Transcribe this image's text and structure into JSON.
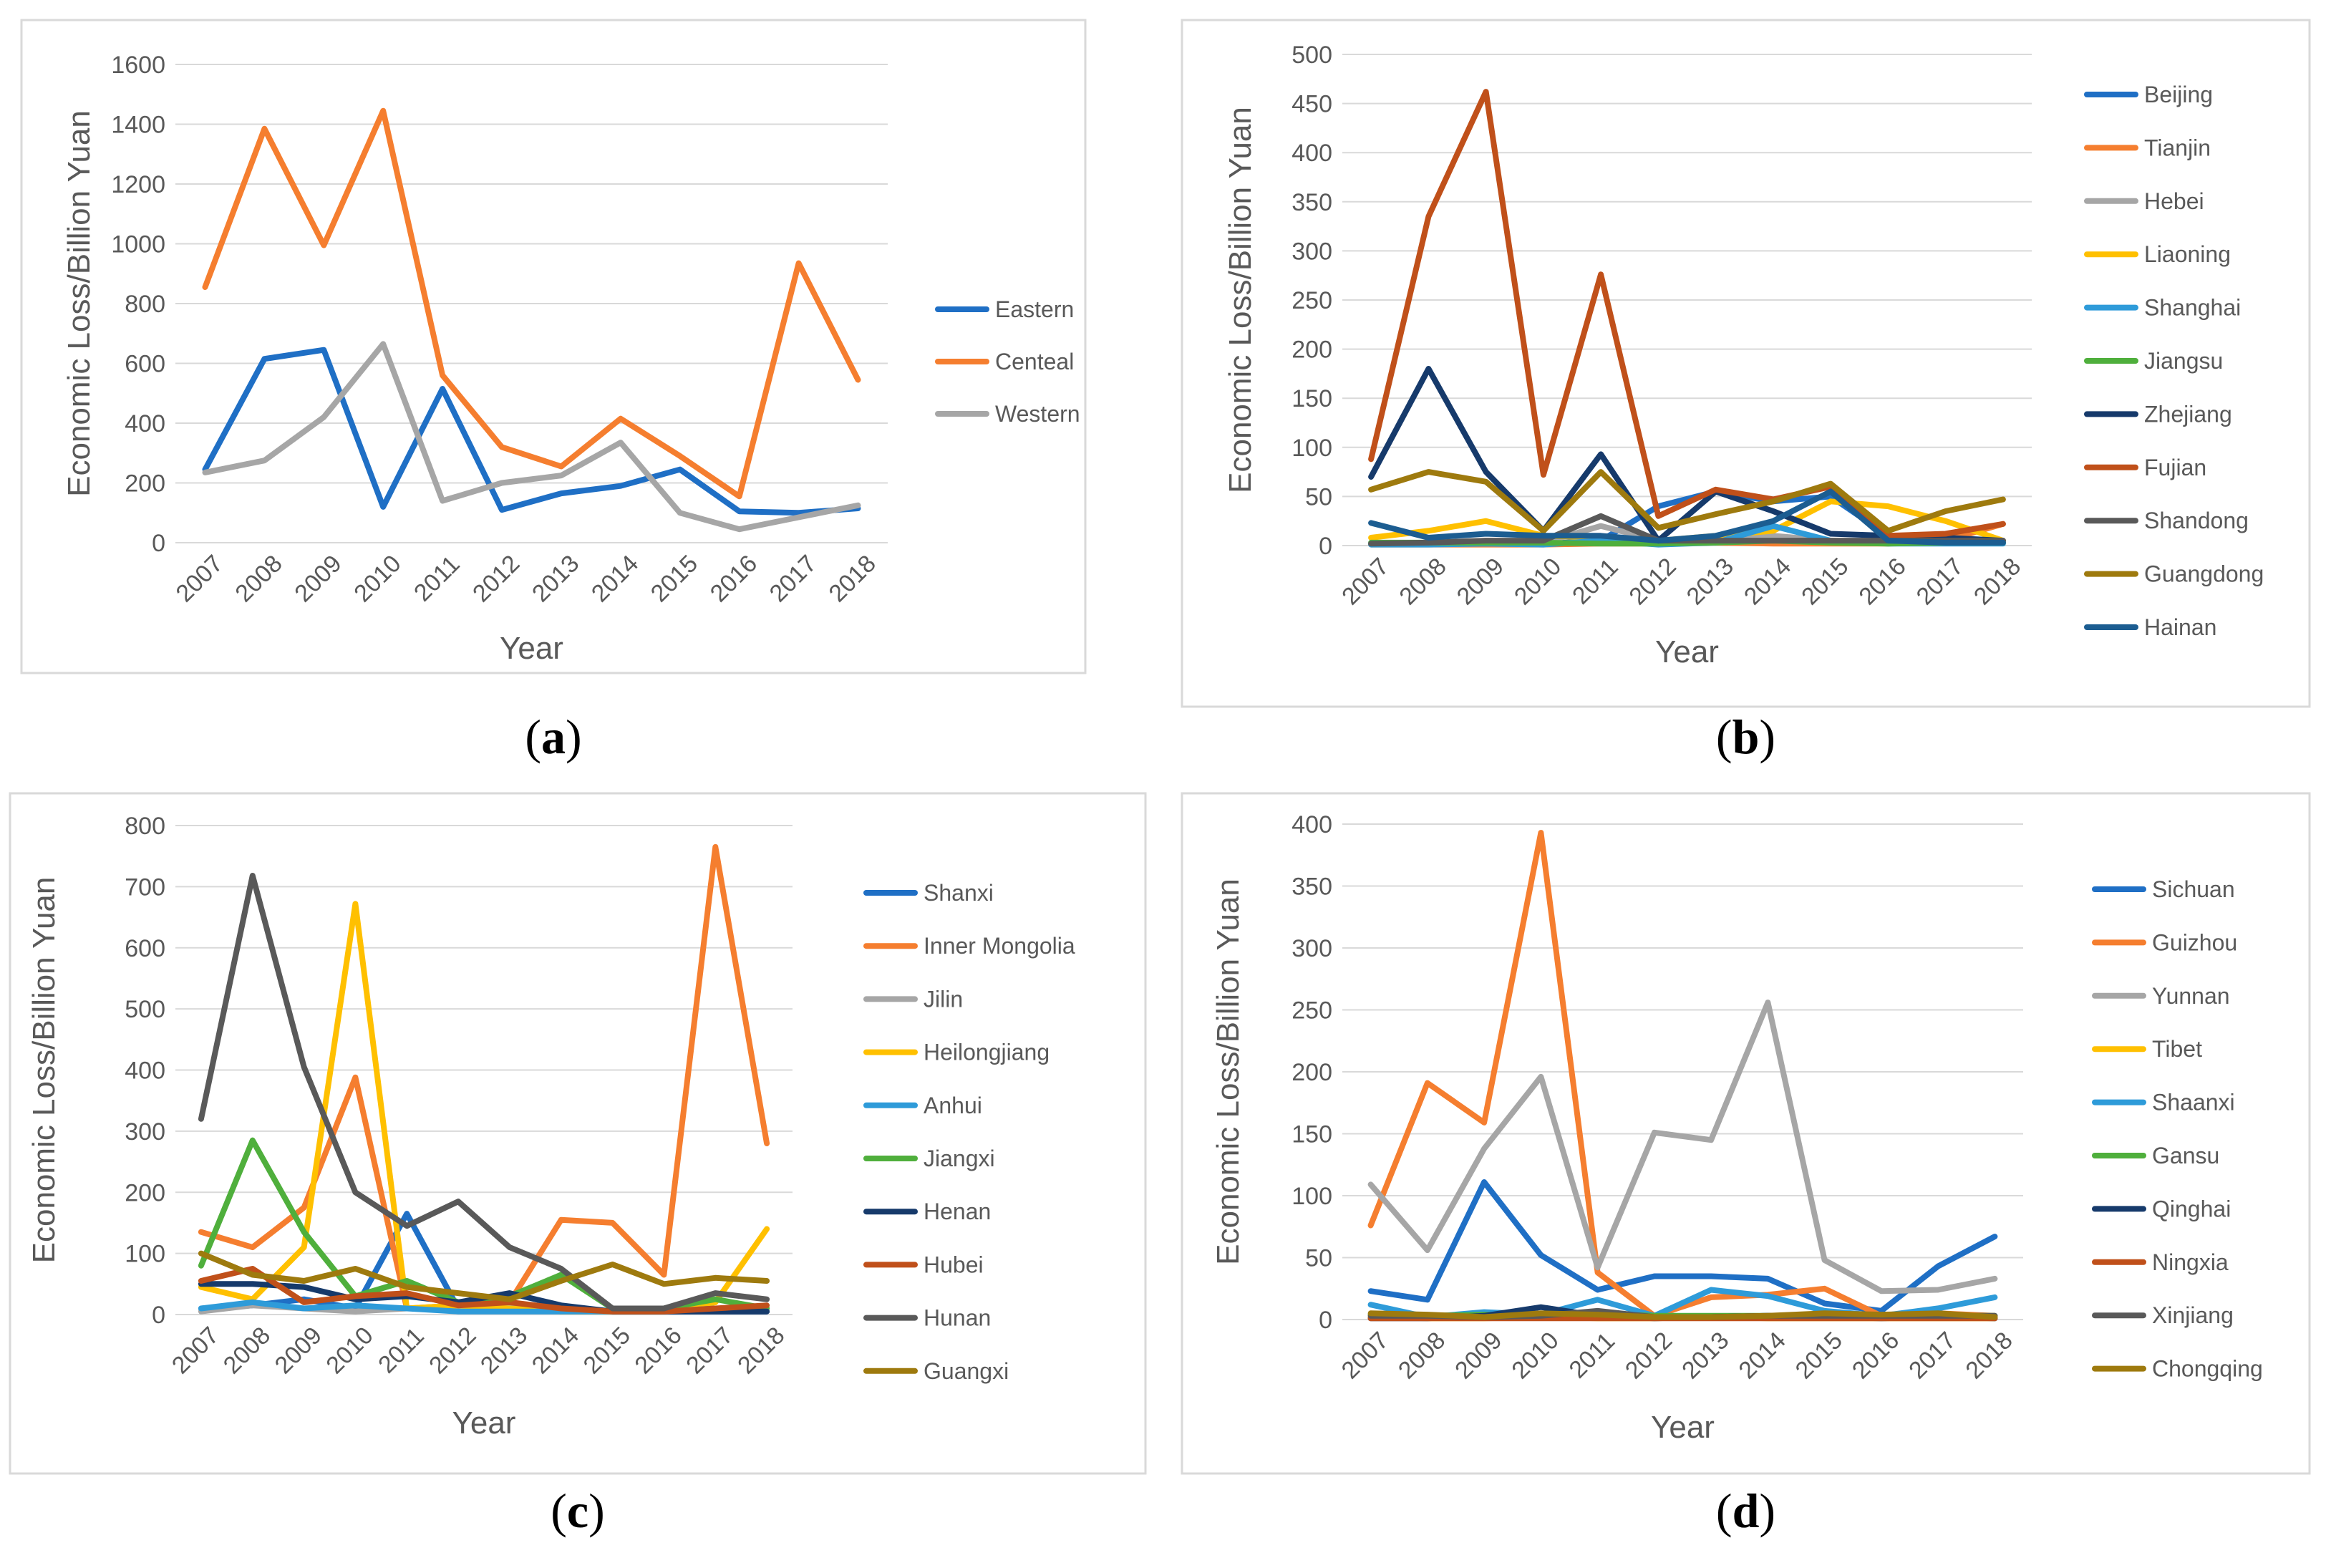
{
  "chart_data": [
    {
      "type": "line",
      "caption": "a",
      "xlabel": "Year",
      "ylabel": "Economic Loss/Billion Yuan",
      "ylim": [
        0,
        1600
      ],
      "yticks": [
        0,
        200,
        400,
        600,
        800,
        1000,
        1200,
        1400,
        1600
      ],
      "categories": [
        "2007",
        "2008",
        "2009",
        "2010",
        "2011",
        "2012",
        "2013",
        "2014",
        "2015",
        "2016",
        "2017",
        "2018"
      ],
      "series": [
        {
          "name": "Eastern",
          "color": "#1F6FC5",
          "values": [
            245,
            615,
            645,
            120,
            515,
            110,
            165,
            190,
            245,
            105,
            100,
            115
          ]
        },
        {
          "name": "Centeal",
          "color": "#F57E2F",
          "values": [
            855,
            1385,
            995,
            1445,
            560,
            320,
            255,
            415,
            290,
            155,
            935,
            545
          ]
        },
        {
          "name": "Western",
          "color": "#A6A6A6",
          "values": [
            235,
            275,
            420,
            665,
            140,
            200,
            225,
            335,
            100,
            45,
            85,
            125
          ]
        }
      ]
    },
    {
      "type": "line",
      "caption": "b",
      "xlabel": "Year",
      "ylabel": "Economic Loss/Billion Yuan",
      "ylim": [
        0,
        500
      ],
      "yticks": [
        0,
        50,
        100,
        150,
        200,
        250,
        300,
        350,
        400,
        450,
        500
      ],
      "categories": [
        "2007",
        "2008",
        "2009",
        "2010",
        "2011",
        "2012",
        "2013",
        "2014",
        "2015",
        "2016",
        "2017",
        "2018"
      ],
      "series": [
        {
          "name": "Beijing",
          "color": "#1F6FC5",
          "values": [
            2,
            2,
            3,
            2,
            5,
            40,
            55,
            45,
            50,
            10,
            5,
            3
          ]
        },
        {
          "name": "Tianjin",
          "color": "#F57E2F",
          "values": [
            1,
            1,
            1,
            1,
            2,
            2,
            3,
            2,
            2,
            2,
            5,
            22
          ]
        },
        {
          "name": "Hebei",
          "color": "#A6A6A6",
          "values": [
            2,
            2,
            5,
            3,
            20,
            5,
            5,
            10,
            5,
            3,
            5,
            5
          ]
        },
        {
          "name": "Liaoning",
          "color": "#FFC000",
          "values": [
            8,
            15,
            25,
            10,
            8,
            5,
            10,
            15,
            45,
            40,
            25,
            5
          ]
        },
        {
          "name": "Shanghai",
          "color": "#2E9BD9",
          "values": [
            1,
            1,
            2,
            1,
            5,
            1,
            3,
            20,
            5,
            2,
            2,
            2
          ]
        },
        {
          "name": "Jiangsu",
          "color": "#4FAF3C",
          "values": [
            3,
            3,
            3,
            3,
            2,
            2,
            3,
            5,
            3,
            2,
            3,
            3
          ]
        },
        {
          "name": "Zhejiang",
          "color": "#163A6B",
          "values": [
            70,
            180,
            75,
            15,
            93,
            5,
            55,
            35,
            12,
            10,
            8,
            5
          ]
        },
        {
          "name": "Fujian",
          "color": "#C0501A",
          "values": [
            88,
            335,
            462,
            72,
            276,
            30,
            57,
            47,
            60,
            10,
            12,
            22
          ]
        },
        {
          "name": "Shandong",
          "color": "#595959",
          "values": [
            2,
            3,
            5,
            5,
            30,
            5,
            5,
            5,
            5,
            5,
            5,
            5
          ]
        },
        {
          "name": "Guangdong",
          "color": "#9E7A0E",
          "values": [
            57,
            75,
            65,
            15,
            75,
            18,
            32,
            45,
            63,
            15,
            35,
            47
          ]
        },
        {
          "name": "Hainan",
          "color": "#1C5D91",
          "values": [
            23,
            8,
            12,
            10,
            10,
            5,
            10,
            25,
            55,
            5,
            3,
            3
          ]
        }
      ]
    },
    {
      "type": "line",
      "caption": "c",
      "xlabel": "Year",
      "ylabel": "Economic Loss/Billion Yuan",
      "ylim": [
        0,
        800
      ],
      "yticks": [
        0,
        100,
        200,
        300,
        400,
        500,
        600,
        700,
        800
      ],
      "categories": [
        "2007",
        "2008",
        "2009",
        "2010",
        "2011",
        "2012",
        "2013",
        "2014",
        "2015",
        "2016",
        "2017",
        "2018"
      ],
      "series": [
        {
          "name": "Shanxi",
          "color": "#1F6FC5",
          "values": [
            10,
            15,
            25,
            10,
            165,
            10,
            15,
            10,
            5,
            5,
            5,
            5
          ]
        },
        {
          "name": "Inner Mongolia",
          "color": "#F57E2F",
          "values": [
            135,
            110,
            175,
            388,
            10,
            15,
            20,
            155,
            150,
            65,
            765,
            280
          ]
        },
        {
          "name": "Jilin",
          "color": "#A6A6A6",
          "values": [
            5,
            15,
            10,
            5,
            10,
            10,
            15,
            10,
            5,
            5,
            10,
            10
          ]
        },
        {
          "name": "Heilongjiang",
          "color": "#FFC000",
          "values": [
            45,
            25,
            110,
            672,
            10,
            15,
            10,
            5,
            5,
            5,
            20,
            140
          ]
        },
        {
          "name": "Anhui",
          "color": "#2E9BD9",
          "values": [
            10,
            20,
            10,
            15,
            10,
            5,
            5,
            5,
            5,
            5,
            10,
            10
          ]
        },
        {
          "name": "Jiangxi",
          "color": "#4FAF3C",
          "values": [
            80,
            285,
            135,
            30,
            55,
            20,
            30,
            65,
            10,
            10,
            25,
            10
          ]
        },
        {
          "name": "Henan",
          "color": "#163A6B",
          "values": [
            50,
            50,
            45,
            25,
            30,
            20,
            35,
            15,
            5,
            5,
            5,
            5
          ]
        },
        {
          "name": "Hubei",
          "color": "#C0501A",
          "values": [
            55,
            75,
            20,
            30,
            35,
            15,
            20,
            10,
            5,
            5,
            10,
            15
          ]
        },
        {
          "name": "Hunan",
          "color": "#595959",
          "values": [
            320,
            718,
            405,
            200,
            145,
            185,
            110,
            75,
            10,
            10,
            35,
            25
          ]
        },
        {
          "name": "Guangxi",
          "color": "#9E7A0E",
          "values": [
            100,
            65,
            55,
            75,
            45,
            35,
            25,
            55,
            82,
            50,
            60,
            55
          ]
        }
      ]
    },
    {
      "type": "line",
      "caption": "d",
      "xlabel": "Year",
      "ylabel": "Economic Loss/Billion Yuan",
      "ylim": [
        0,
        400
      ],
      "yticks": [
        0,
        50,
        100,
        150,
        200,
        250,
        300,
        350,
        400
      ],
      "categories": [
        "2007",
        "2008",
        "2009",
        "2010",
        "2011",
        "2012",
        "2013",
        "2014",
        "2015",
        "2016",
        "2017",
        "2018"
      ],
      "series": [
        {
          "name": "Sichuan",
          "color": "#1F6FC5",
          "values": [
            23,
            16,
            111,
            52,
            24,
            35,
            35,
            33,
            13,
            7,
            43,
            67
          ]
        },
        {
          "name": "Guizhou",
          "color": "#F57E2F",
          "values": [
            76,
            191,
            159,
            393,
            38,
            3,
            18,
            20,
            25,
            3,
            5,
            3
          ]
        },
        {
          "name": "Yunnan",
          "color": "#A6A6A6",
          "values": [
            109,
            56,
            138,
            196,
            42,
            151,
            145,
            256,
            48,
            23,
            24,
            33
          ]
        },
        {
          "name": "Tibet",
          "color": "#FFC000",
          "values": [
            2,
            1,
            1,
            2,
            1,
            1,
            2,
            1,
            1,
            1,
            1,
            1
          ]
        },
        {
          "name": "Shaanxi",
          "color": "#2E9BD9",
          "values": [
            12,
            2,
            6,
            4,
            16,
            3,
            24,
            19,
            7,
            3,
            9,
            18
          ]
        },
        {
          "name": "Gansu",
          "color": "#4FAF3C",
          "values": [
            4,
            3,
            4,
            3,
            5,
            3,
            3,
            3,
            3,
            2,
            3,
            3
          ]
        },
        {
          "name": "Qinghai",
          "color": "#163A6B",
          "values": [
            1,
            1,
            3,
            10,
            3,
            1,
            2,
            3,
            2,
            1,
            2,
            1
          ]
        },
        {
          "name": "Ningxia",
          "color": "#C0501A",
          "values": [
            1,
            1,
            1,
            1,
            1,
            1,
            1,
            1,
            1,
            1,
            1,
            1
          ]
        },
        {
          "name": "Xinjiang",
          "color": "#595959",
          "values": [
            3,
            3,
            2,
            3,
            7,
            2,
            2,
            3,
            3,
            3,
            3,
            3
          ]
        },
        {
          "name": "Chongqing",
          "color": "#9E7A0E",
          "values": [
            5,
            4,
            2,
            5,
            4,
            2,
            2,
            3,
            5,
            4,
            5,
            2
          ]
        }
      ]
    }
  ]
}
